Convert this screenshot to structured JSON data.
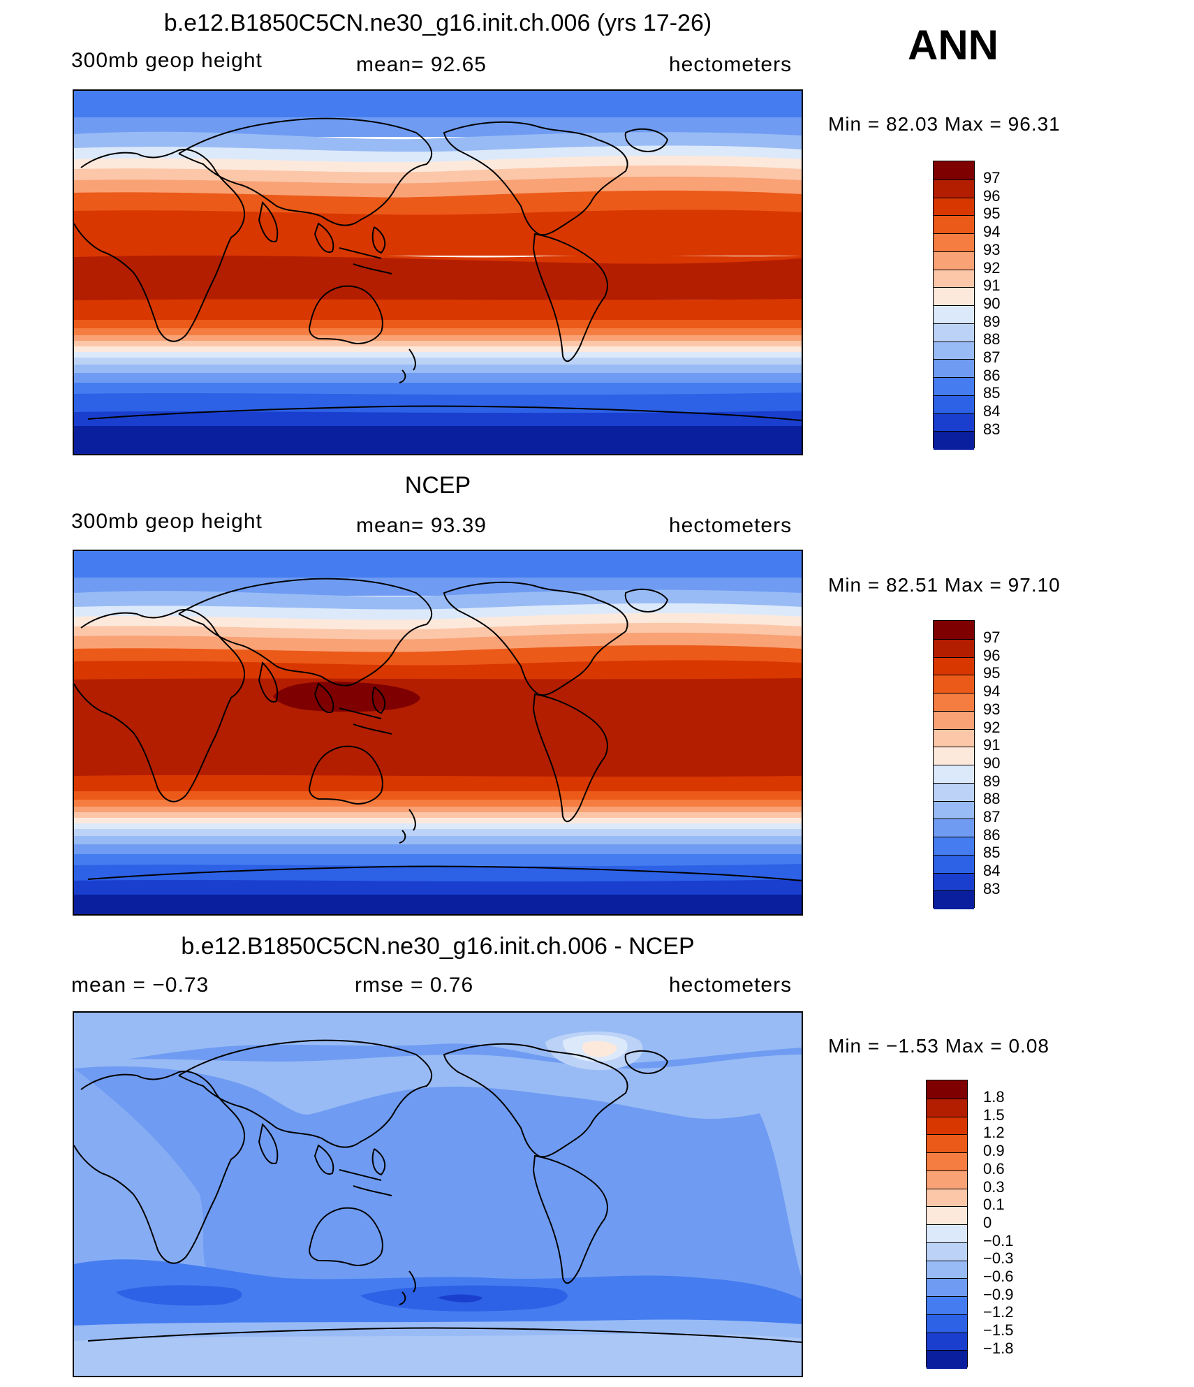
{
  "season": "ANN",
  "panels": [
    {
      "id": "model",
      "title": "b.e12.B1850C5CN.ne30_g16.init.ch.006 (yrs 17-26)",
      "left_label": "300mb  geop  height",
      "center_label": "mean=   92.65",
      "units": "hectometers",
      "minmax": "Min  =    82.03  Max  =    96.31",
      "colorbar_levels": [
        "97",
        "96",
        "95",
        "94",
        "93",
        "92",
        "91",
        "90",
        "89",
        "88",
        "87",
        "86",
        "85",
        "84",
        "83"
      ],
      "colorbar_colors": [
        "#7f0000",
        "#b31e00",
        "#d93700",
        "#eb5a19",
        "#f57d41",
        "#f9a276",
        "#fcc7a9",
        "#fde9dc",
        "#dce9fa",
        "#bcd3f7",
        "#99bbf5",
        "#6f9cf2",
        "#457df0",
        "#2d61e6",
        "#1a3fcf",
        "#0a1f9e"
      ],
      "chart_data": {
        "type": "heatmap",
        "variable": "300mb geop height",
        "units": "hectometers",
        "mean": 92.65,
        "min": 82.03,
        "max": 96.31,
        "contour_levels": [
          83,
          84,
          85,
          86,
          87,
          88,
          89,
          90,
          91,
          92,
          93,
          94,
          95,
          96,
          97
        ],
        "zonal_profile": [
          {
            "lat": 90,
            "value": 84.5
          },
          {
            "lat": 75,
            "value": 85.8
          },
          {
            "lat": 60,
            "value": 87.5
          },
          {
            "lat": 45,
            "value": 90.5
          },
          {
            "lat": 30,
            "value": 93.5
          },
          {
            "lat": 15,
            "value": 95.6
          },
          {
            "lat": 0,
            "value": 96.0
          },
          {
            "lat": -15,
            "value": 95.6
          },
          {
            "lat": -30,
            "value": 93.0
          },
          {
            "lat": -45,
            "value": 89.5
          },
          {
            "lat": -60,
            "value": 85.5
          },
          {
            "lat": -75,
            "value": 83.5
          },
          {
            "lat": -90,
            "value": 82.5
          }
        ]
      }
    },
    {
      "id": "obs",
      "title": "NCEP",
      "left_label": "300mb  geop  height",
      "center_label": "mean=   93.39",
      "units": "hectometers",
      "minmax": "Min  =    82.51  Max  =    97.10",
      "colorbar_levels": [
        "97",
        "96",
        "95",
        "94",
        "93",
        "92",
        "91",
        "90",
        "89",
        "88",
        "87",
        "86",
        "85",
        "84",
        "83"
      ],
      "colorbar_colors": [
        "#7f0000",
        "#b31e00",
        "#d93700",
        "#eb5a19",
        "#f57d41",
        "#f9a276",
        "#fcc7a9",
        "#fde9dc",
        "#dce9fa",
        "#bcd3f7",
        "#99bbf5",
        "#6f9cf2",
        "#457df0",
        "#2d61e6",
        "#1a3fcf",
        "#0a1f9e"
      ],
      "chart_data": {
        "type": "heatmap",
        "variable": "300mb geop height",
        "units": "hectometers",
        "mean": 93.39,
        "min": 82.51,
        "max": 97.1,
        "contour_levels": [
          83,
          84,
          85,
          86,
          87,
          88,
          89,
          90,
          91,
          92,
          93,
          94,
          95,
          96,
          97
        ],
        "zonal_profile": [
          {
            "lat": 90,
            "value": 85.0
          },
          {
            "lat": 75,
            "value": 86.2
          },
          {
            "lat": 60,
            "value": 88.0
          },
          {
            "lat": 45,
            "value": 91.0
          },
          {
            "lat": 30,
            "value": 94.0
          },
          {
            "lat": 15,
            "value": 96.3
          },
          {
            "lat": 0,
            "value": 96.5
          },
          {
            "lat": -15,
            "value": 96.2
          },
          {
            "lat": -30,
            "value": 93.8
          },
          {
            "lat": -45,
            "value": 90.5
          },
          {
            "lat": -60,
            "value": 86.5
          },
          {
            "lat": -75,
            "value": 84.0
          },
          {
            "lat": -90,
            "value": 83.0
          }
        ]
      }
    },
    {
      "id": "diff",
      "title": "b.e12.B1850C5CN.ne30_g16.init.ch.006 - NCEP",
      "left_label": "mean  =    −0.73",
      "center_label": "rmse  =     0.76",
      "units": "hectometers",
      "minmax": "Min  =   −1.53  Max  =     0.08",
      "colorbar_levels": [
        "1.8",
        "1.5",
        "1.2",
        "0.9",
        "0.6",
        "0.3",
        "0.1",
        "0",
        "−0.1",
        "−0.3",
        "−0.6",
        "−0.9",
        "−1.2",
        "−1.5",
        "−1.8"
      ],
      "colorbar_colors": [
        "#7f0000",
        "#b31e00",
        "#d93700",
        "#eb5a19",
        "#f57d41",
        "#f9a276",
        "#fcc7a9",
        "#fde9dc",
        "#dce9fa",
        "#bcd3f7",
        "#99bbf5",
        "#6f9cf2",
        "#457df0",
        "#2d61e6",
        "#1a3fcf",
        "#0a1f9e"
      ],
      "chart_data": {
        "type": "heatmap",
        "variable": "300mb geop height difference",
        "units": "hectometers",
        "mean": -0.73,
        "rmse": 0.76,
        "min": -1.53,
        "max": 0.08,
        "contour_levels": [
          -1.8,
          -1.5,
          -1.2,
          -0.9,
          -0.6,
          -0.3,
          -0.1,
          0,
          0.1,
          0.3,
          0.6,
          0.9,
          1.2,
          1.5,
          1.8
        ]
      }
    }
  ]
}
